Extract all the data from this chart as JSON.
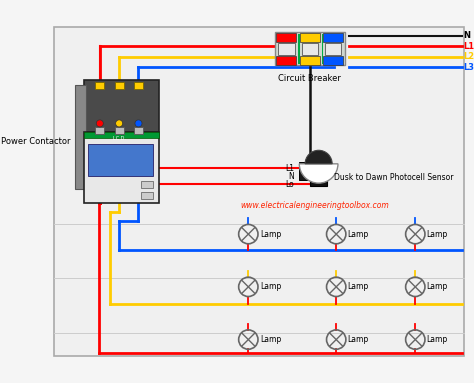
{
  "background_color": "#f5f5f5",
  "wire_red": "#ff0000",
  "wire_yellow": "#ffcc00",
  "wire_blue": "#0055ff",
  "wire_black": "#111111",
  "label_power_contactor": "Power Contactor",
  "label_circuit_breaker": "Circuit Breaker",
  "label_photocell": "Dusk to Dawn Photocell Sensor",
  "label_lamp": "Lamp",
  "label_l1": "L1",
  "label_l2": "L2",
  "label_l3": "L3",
  "label_n": "N",
  "label_lo": "Lo",
  "label_n2": "N",
  "label_l1b": "L1",
  "label_website": "www.electricalengineeringtoolbox.com",
  "website_color": "#ff2200",
  "figsize": [
    4.74,
    3.83
  ],
  "dpi": 100
}
